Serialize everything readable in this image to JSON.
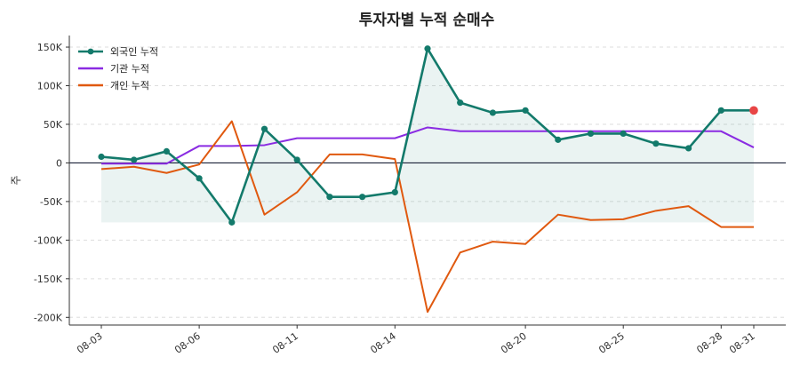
{
  "chart_data": {
    "type": "line",
    "title": "투자자별 누적 순매수",
    "ylabel": "주",
    "xlabel": "",
    "ylim": [
      -210000,
      165000
    ],
    "yticks": [
      150000,
      100000,
      50000,
      0,
      -50000,
      -100000,
      -150000,
      -200000
    ],
    "ytick_labels": [
      "150K",
      "100K",
      "50K",
      "0",
      "-50K",
      "-100K",
      "-150K",
      "-200K"
    ],
    "x": [
      "08-03",
      "08-04",
      "08-05",
      "08-06",
      "08-07",
      "08-10",
      "08-11",
      "08-12",
      "08-13",
      "08-14",
      "08-17",
      "08-18",
      "08-19",
      "08-20",
      "08-21",
      "08-24",
      "08-25",
      "08-26",
      "08-27",
      "08-28",
      "08-31"
    ],
    "xtick_labels": [
      "08-03",
      "08-06",
      "08-11",
      "08-14",
      "08-20",
      "08-25",
      "08-28",
      "08-31"
    ],
    "grid": true,
    "legend_position": "top-left",
    "series": [
      {
        "name": "외국인 누적",
        "color": "#137a6b",
        "marker": true,
        "fill": true,
        "values": [
          8000,
          4000,
          15000,
          -20000,
          -77000,
          44000,
          4000,
          -44000,
          -44000,
          -38000,
          148000,
          78000,
          65000,
          68000,
          30000,
          38000,
          38000,
          25000,
          19000,
          68000,
          68000
        ]
      },
      {
        "name": "기관 누적",
        "color": "#8a2be2",
        "marker": false,
        "fill": false,
        "values": [
          -1000,
          -1000,
          -1000,
          22000,
          22000,
          23000,
          32000,
          32000,
          32000,
          32000,
          46000,
          41000,
          41000,
          41000,
          41000,
          41000,
          41000,
          41000,
          41000,
          41000,
          20000
        ]
      },
      {
        "name": "개인 누적",
        "color": "#e0590f",
        "marker": false,
        "fill": false,
        "values": [
          -8000,
          -5000,
          -13000,
          -2000,
          54000,
          -67000,
          -38000,
          11000,
          11000,
          5000,
          -193000,
          -116000,
          -102000,
          -105000,
          -67000,
          -74000,
          -73000,
          -62000,
          -56000,
          -83000,
          -83000
        ]
      }
    ],
    "highlight_point": {
      "series": "외국인 누적",
      "index": 19,
      "color": "#e84545"
    }
  }
}
